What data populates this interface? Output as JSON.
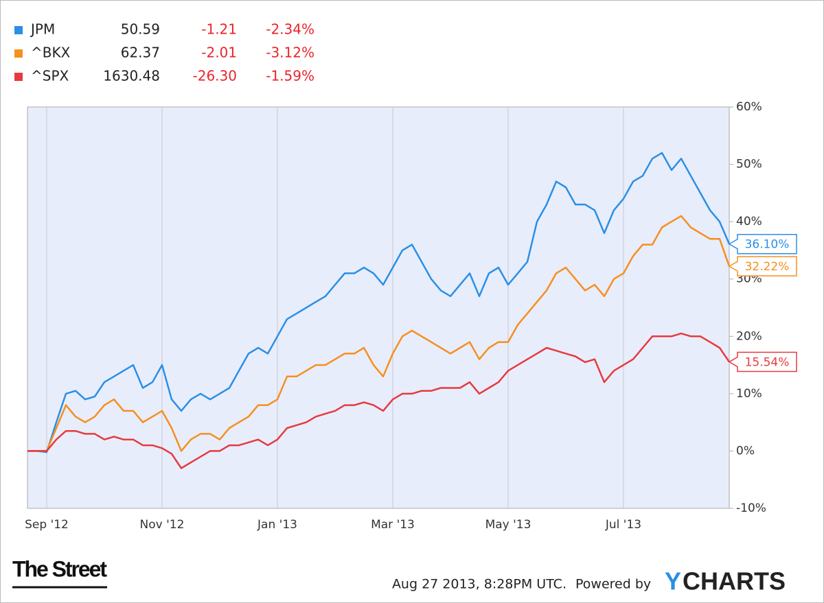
{
  "chart_data": {
    "type": "line",
    "categories": [
      null,
      null,
      "Sep '12",
      null,
      null,
      null,
      null,
      null,
      null,
      null,
      null,
      null,
      null,
      null,
      "Nov '12",
      null,
      null,
      null,
      null,
      null,
      null,
      null,
      null,
      null,
      null,
      null,
      "Jan '13",
      null,
      null,
      null,
      null,
      null,
      null,
      null,
      null,
      null,
      null,
      null,
      "Mar '13",
      null,
      null,
      null,
      null,
      null,
      null,
      null,
      null,
      null,
      null,
      null,
      "May '13",
      null,
      null,
      null,
      null,
      null,
      null,
      null,
      null,
      null,
      null,
      null,
      "Jul '13",
      null,
      null,
      null,
      null,
      null,
      null,
      null,
      null,
      null,
      null,
      null
    ],
    "series": [
      {
        "name": "JPM",
        "color": "#2a8fe6",
        "price": "50.59",
        "change": "-1.21",
        "percent": "-2.34%",
        "end_label": "36.10%",
        "values": [
          0,
          0,
          -0.2,
          5,
          10,
          10.5,
          9,
          9.5,
          12,
          13,
          14,
          15,
          11,
          12,
          15,
          9,
          7,
          9,
          10,
          9,
          10,
          11,
          14,
          17,
          18,
          17,
          20,
          23,
          24,
          25,
          26,
          27,
          29,
          31,
          31,
          32,
          31,
          29,
          32,
          35,
          36,
          33,
          30,
          28,
          27,
          29,
          31,
          27,
          31,
          32,
          29,
          31,
          33,
          40,
          43,
          47,
          46,
          43,
          43,
          42,
          38,
          42,
          44,
          47,
          48,
          51,
          52,
          49,
          51,
          48,
          45,
          42,
          40,
          36.1
        ]
      },
      {
        "name": "^BKX",
        "color": "#f68f1e",
        "price": "62.37",
        "change": "-2.01",
        "percent": "-3.12%",
        "end_label": "32.22%",
        "values": [
          0,
          0,
          0,
          4,
          8,
          6,
          5,
          6,
          8,
          9,
          7,
          7,
          5,
          6,
          7,
          4,
          0,
          2,
          3,
          3,
          2,
          4,
          5,
          6,
          8,
          8,
          9,
          13,
          13,
          14,
          15,
          15,
          16,
          17,
          17,
          18,
          15,
          13,
          17,
          20,
          21,
          20,
          19,
          18,
          17,
          18,
          19,
          16,
          18,
          19,
          19,
          22,
          24,
          26,
          28,
          31,
          32,
          30,
          28,
          29,
          27,
          30,
          31,
          34,
          36,
          36,
          39,
          40,
          41,
          39,
          38,
          37,
          37,
          32.22
        ]
      },
      {
        "name": "^SPX",
        "color": "#e8393e",
        "price": "1630.48",
        "change": "-26.30",
        "percent": "-1.59%",
        "end_label": "15.54%",
        "values": [
          0,
          0,
          0,
          2,
          3.5,
          3.5,
          3,
          3,
          2,
          2.5,
          2,
          2,
          1,
          1,
          0.5,
          -0.5,
          -3,
          -2,
          -1,
          0,
          0,
          1,
          1,
          1.5,
          2,
          1,
          2,
          4,
          4.5,
          5,
          6,
          6.5,
          7,
          8,
          8,
          8.5,
          8,
          7,
          9,
          10,
          10,
          10.5,
          10.5,
          11,
          11,
          11,
          12,
          10,
          11,
          12,
          14,
          15,
          16,
          17,
          18,
          17.5,
          17,
          16.5,
          15.5,
          16,
          12,
          14,
          15,
          16,
          18,
          20,
          20,
          20,
          20.5,
          20,
          20,
          19,
          18,
          15.54
        ]
      }
    ],
    "ylim": [
      -10,
      60
    ],
    "yticks": [
      {
        "value": -10,
        "label": "-10%"
      },
      {
        "value": 0,
        "label": "0%"
      },
      {
        "value": 10,
        "label": "10%"
      },
      {
        "value": 20,
        "label": "20%"
      },
      {
        "value": 30,
        "label": "30%"
      },
      {
        "value": 40,
        "label": "40%"
      },
      {
        "value": 50,
        "label": "50%"
      },
      {
        "value": 60,
        "label": "60%"
      }
    ],
    "grid": true,
    "plot_background": "#e8edfb"
  },
  "footer": {
    "brand": "The Street",
    "timestamp": "Aug 27 2013, 8:28PM UTC.",
    "powered": "Powered by",
    "logo": [
      "Y",
      "CHARTS"
    ]
  }
}
